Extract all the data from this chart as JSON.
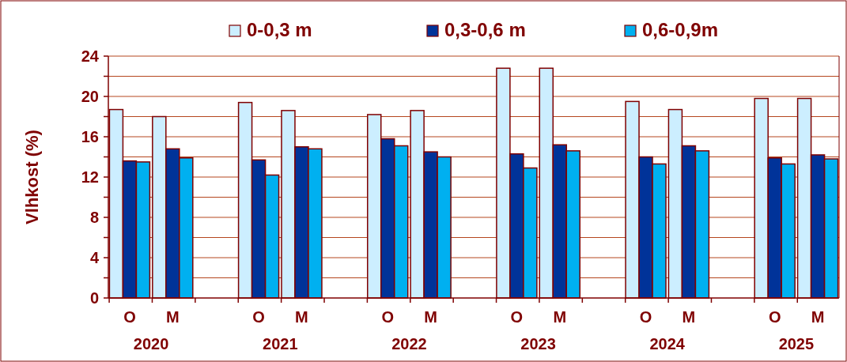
{
  "chart_data": {
    "type": "bar",
    "ylabel": "Vlhkost (%)",
    "categories": [
      "O",
      "M",
      null,
      "O",
      "M",
      null,
      "O",
      "M",
      null,
      "O",
      "M",
      null,
      "O",
      "M",
      null,
      "O",
      "M"
    ],
    "series": [
      {
        "name": "0-0,3 m",
        "color": "#cceeff",
        "values": [
          18.7,
          18.0,
          null,
          19.4,
          18.6,
          null,
          18.2,
          18.6,
          null,
          22.8,
          22.8,
          null,
          19.5,
          18.7,
          null,
          19.8,
          19.8
        ]
      },
      {
        "name": "0,3-0,6 m",
        "color": "#003399",
        "values": [
          13.6,
          14.8,
          null,
          13.7,
          15.0,
          null,
          15.8,
          14.5,
          null,
          14.3,
          15.2,
          null,
          14.0,
          15.1,
          null,
          13.9,
          14.2
        ]
      },
      {
        "name": "0,6-0,9m",
        "color": "#00b0f0",
        "values": [
          13.5,
          13.9,
          null,
          12.2,
          14.8,
          null,
          15.1,
          14.0,
          null,
          12.9,
          14.6,
          null,
          13.3,
          14.6,
          null,
          13.3,
          13.8
        ]
      }
    ],
    "ylim": [
      0,
      24
    ],
    "yticks": [
      0,
      {
        "value": 2,
        "label": null
      },
      4,
      {
        "value": 6,
        "label": null
      },
      8,
      {
        "value": 10,
        "label": null
      },
      12,
      {
        "value": 14,
        "label": null
      },
      16,
      {
        "value": 18,
        "label": null
      },
      20,
      {
        "value": 22,
        "label": null
      },
      24
    ],
    "grid": "y",
    "legend": "top",
    "annotations": [
      "2020",
      "2021",
      "2022",
      "2023",
      "2024",
      "2025"
    ]
  }
}
